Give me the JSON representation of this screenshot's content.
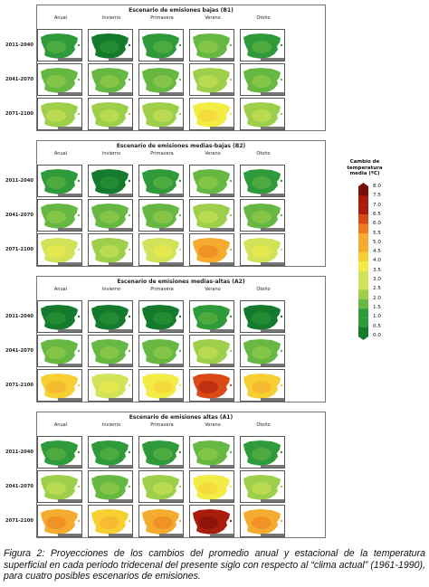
{
  "panels": [
    {
      "title": "Escenario de emisiones bajas (B1)",
      "levels": [
        [
          1,
          0,
          1,
          2,
          1
        ],
        [
          2,
          2,
          2,
          3,
          2
        ],
        [
          3,
          3,
          3,
          5,
          3
        ]
      ]
    },
    {
      "title": "Escenario de emisiones medias-bajas (B2)",
      "levels": [
        [
          1,
          0,
          1,
          2,
          1
        ],
        [
          2,
          2,
          2,
          3,
          2
        ],
        [
          4,
          3,
          4,
          7,
          4
        ]
      ]
    },
    {
      "title": "Escenario de emisiones medias-altas (A2)",
      "levels": [
        [
          0,
          0,
          0,
          1,
          0
        ],
        [
          2,
          2,
          2,
          3,
          2
        ],
        [
          6,
          4,
          5,
          9,
          6
        ]
      ]
    },
    {
      "title": "Escenario de emisiones altas (A1)",
      "levels": [
        [
          1,
          1,
          1,
          2,
          1
        ],
        [
          3,
          2,
          3,
          5,
          3
        ],
        [
          7,
          6,
          7,
          10,
          7
        ]
      ]
    }
  ],
  "seasons": [
    "Anual",
    "Invierno",
    "Primavera",
    "Verano",
    "Otoño"
  ],
  "periods": [
    "2011-2040",
    "2041-2070",
    "2071-2100"
  ],
  "legend": {
    "title": "Cambio de temperatura media (ºC)",
    "ticks": [
      "8.0",
      "7.5",
      "7.0",
      "6.5",
      "6.0",
      "5.5",
      "5.0",
      "4.5",
      "4.0",
      "3.5",
      "3.0",
      "2.5",
      "2.0",
      "1.5",
      "1.0",
      "0.5",
      "0.0"
    ]
  },
  "colors": {
    "scale": [
      "#157a2c",
      "#2f9a3a",
      "#66b843",
      "#9dcf4a",
      "#d2e35a",
      "#f3ec45",
      "#f6cf33",
      "#f5ab2d",
      "#ec7d23",
      "#d94a17",
      "#a91d0b",
      "#7a0d06"
    ]
  },
  "caption": "Figura 2: Proyecciones de los cambios del promedio anual y estacional de la temperatura superficial en cada periodo tridecenal del presente siglo con respecto al “clima actual” (1961-1990), para cuatro posibles escenarios de emisiones."
}
